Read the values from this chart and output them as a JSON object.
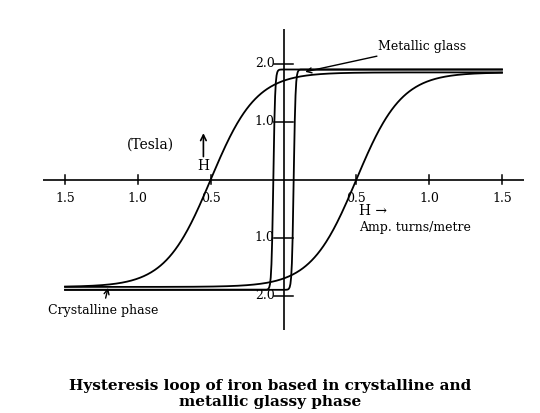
{
  "title": "Hysteresis loop of iron based in crystalline and\nmetallic glassy phase",
  "title_fontsize": 11,
  "xlabel_h": "H →",
  "xlabel_unit": "Amp. turns/metre",
  "ylabel_line1": "(Tesla) H",
  "xlim": [
    -1.65,
    1.65
  ],
  "ylim": [
    -2.6,
    2.6
  ],
  "xticks": [
    -1.5,
    -1.0,
    -0.5,
    0.5,
    1.0,
    1.5
  ],
  "yticks_pos": [
    1.0,
    2.0
  ],
  "yticks_neg": [
    1.0,
    2.0
  ],
  "background_color": "#ffffff",
  "line_color": "#000000",
  "crystalline_label": "Crystalline phase",
  "metallic_label": "Metallic glass",
  "font_family": "DejaVu Serif",
  "sat_c": 1.85,
  "coer_c": 0.5,
  "k_c": 3.2,
  "sat_m": 1.9,
  "coer_m": 0.07,
  "k_m": 80
}
